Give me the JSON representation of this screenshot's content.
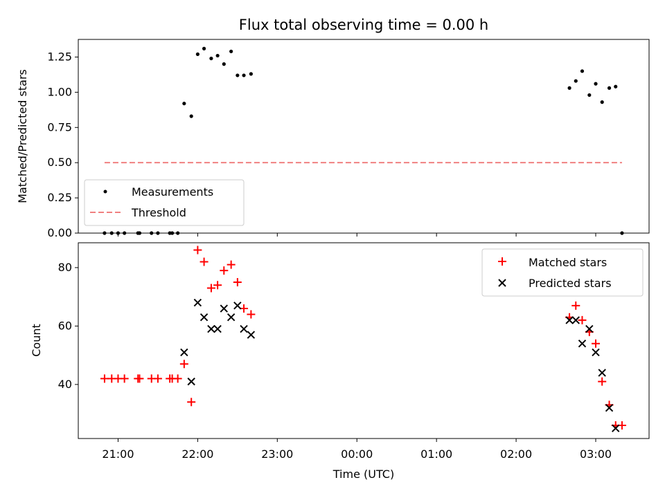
{
  "chart_data": [
    {
      "type": "scatter",
      "title": "Flux total observing time = 0.00 h",
      "ylabel": "Matched/Predicted stars",
      "xlabel": "",
      "xlim": [
        20.5,
        27.67
      ],
      "ylim": [
        0.0,
        1.375
      ],
      "y_ticks": [
        "0.00",
        "0.25",
        "0.50",
        "0.75",
        "1.00",
        "1.25"
      ],
      "legend_position": "lower-left",
      "series": [
        {
          "name": "Measurements",
          "color": "#000000",
          "marker": "dot",
          "points": [
            [
              20.83,
              0.0
            ],
            [
              20.92,
              0.0
            ],
            [
              21.0,
              0.0
            ],
            [
              21.08,
              0.0
            ],
            [
              21.25,
              0.0
            ],
            [
              21.27,
              0.0
            ],
            [
              21.42,
              0.0
            ],
            [
              21.5,
              0.0
            ],
            [
              21.65,
              0.0
            ],
            [
              21.68,
              0.0
            ],
            [
              21.75,
              0.0
            ],
            [
              21.83,
              0.92
            ],
            [
              21.92,
              0.83
            ],
            [
              22.0,
              1.27
            ],
            [
              22.08,
              1.31
            ],
            [
              22.17,
              1.24
            ],
            [
              22.25,
              1.26
            ],
            [
              22.33,
              1.2
            ],
            [
              22.42,
              1.29
            ],
            [
              22.5,
              1.12
            ],
            [
              22.58,
              1.12
            ],
            [
              22.67,
              1.13
            ],
            [
              26.67,
              1.03
            ],
            [
              26.75,
              1.08
            ],
            [
              26.83,
              1.15
            ],
            [
              26.92,
              0.98
            ],
            [
              27.0,
              1.06
            ],
            [
              27.08,
              0.93
            ],
            [
              27.17,
              1.03
            ],
            [
              27.25,
              1.04
            ],
            [
              27.33,
              0.0
            ]
          ]
        },
        {
          "name": "Threshold",
          "color": "#f08080",
          "style": "dashed",
          "points": [
            [
              20.83,
              0.5
            ],
            [
              27.33,
              0.5
            ]
          ]
        }
      ]
    },
    {
      "type": "scatter",
      "title": "",
      "xlabel": "Time (UTC)",
      "ylabel": "Count",
      "xlim": [
        20.5,
        27.67
      ],
      "ylim": [
        21.5,
        88.5
      ],
      "y_ticks": [
        "40",
        "60",
        "80"
      ],
      "x_ticks": [
        "21:00",
        "22:00",
        "23:00",
        "00:00",
        "01:00",
        "02:00",
        "03:00"
      ],
      "legend_position": "upper-right",
      "series": [
        {
          "name": "Matched stars",
          "color": "#ff0000",
          "marker": "plus",
          "points": [
            [
              20.83,
              42
            ],
            [
              20.92,
              42
            ],
            [
              21.0,
              42
            ],
            [
              21.08,
              42
            ],
            [
              21.25,
              42
            ],
            [
              21.27,
              42
            ],
            [
              21.42,
              42
            ],
            [
              21.5,
              42
            ],
            [
              21.65,
              42
            ],
            [
              21.68,
              42
            ],
            [
              21.75,
              42
            ],
            [
              21.83,
              47
            ],
            [
              21.92,
              34
            ],
            [
              22.0,
              86
            ],
            [
              22.08,
              82
            ],
            [
              22.17,
              73
            ],
            [
              22.25,
              74
            ],
            [
              22.33,
              79
            ],
            [
              22.42,
              81
            ],
            [
              22.5,
              75
            ],
            [
              22.58,
              66
            ],
            [
              22.67,
              64
            ],
            [
              26.67,
              63
            ],
            [
              26.75,
              67
            ],
            [
              26.83,
              62
            ],
            [
              26.92,
              58
            ],
            [
              27.0,
              54
            ],
            [
              27.08,
              41
            ],
            [
              27.17,
              33
            ],
            [
              27.25,
              26
            ],
            [
              27.33,
              26
            ]
          ]
        },
        {
          "name": "Predicted stars",
          "color": "#000000",
          "marker": "x",
          "points": [
            [
              21.83,
              51
            ],
            [
              21.92,
              41
            ],
            [
              22.0,
              68
            ],
            [
              22.08,
              63
            ],
            [
              22.17,
              59
            ],
            [
              22.25,
              59
            ],
            [
              22.33,
              66
            ],
            [
              22.42,
              63
            ],
            [
              22.5,
              67
            ],
            [
              22.58,
              59
            ],
            [
              22.67,
              57
            ],
            [
              26.67,
              62
            ],
            [
              26.75,
              62
            ],
            [
              26.83,
              54
            ],
            [
              26.92,
              59
            ],
            [
              27.0,
              51
            ],
            [
              27.08,
              44
            ],
            [
              27.17,
              32
            ],
            [
              27.25,
              25
            ]
          ]
        }
      ]
    }
  ]
}
